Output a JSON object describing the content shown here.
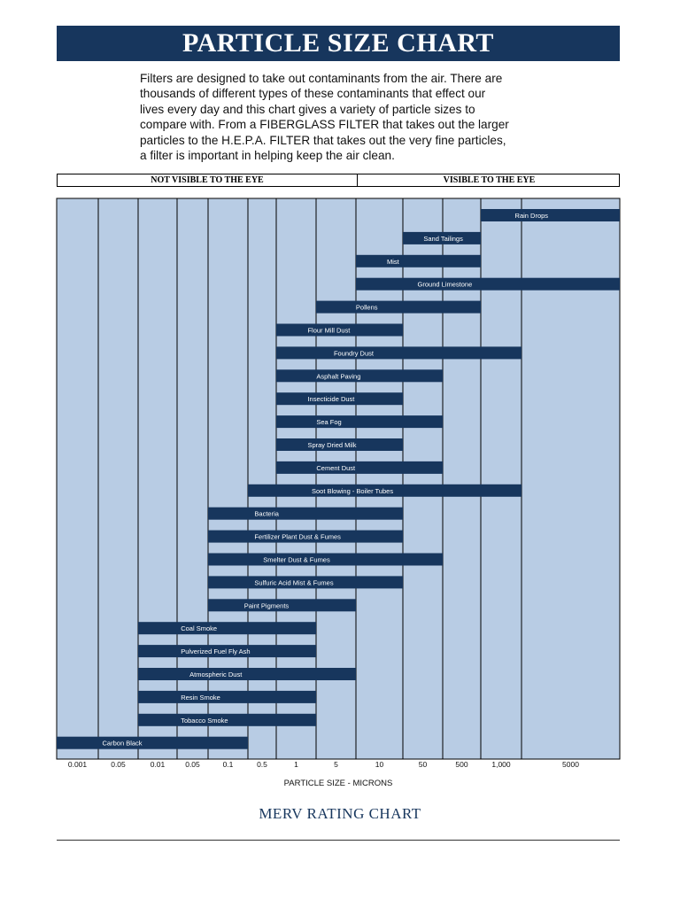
{
  "page": {
    "title": "PARTICLE SIZE CHART",
    "intro": "Filters are designed to take out contaminants from the air. There are thousands of different types of these contaminants that effect our lives every day and this chart gives a variety of particle sizes to compare with. From a FIBERGLASS FILTER that takes out the larger particles to the H.E.P.A. FILTER that takes out the very fine particles, a filter is important in helping keep the air clean.",
    "not_visible_label": "NOT VISIBLE TO THE EYE",
    "visible_label": "VISIBLE TO THE EYE",
    "merv_title": "MERV RATING CHART"
  },
  "colors": {
    "header": "#17365d",
    "column": "#b8cce4",
    "bar": "#17365d",
    "bar_text": "#ffffff"
  },
  "chart_data": {
    "type": "range-bar",
    "title": "PARTICLE SIZE CHART",
    "xlabel": "PARTICLE SIZE - MICRONS",
    "x_ticks": [
      "0.001",
      "0.05",
      "0.01",
      "0.05",
      "0.1",
      "0.5",
      "1",
      "5",
      "10",
      "50",
      "500",
      "1,000",
      "5000"
    ],
    "series": [
      {
        "name": "Rain Drops",
        "from": 11,
        "to": 13
      },
      {
        "name": "Sand Tailings",
        "from": 9,
        "to": 11
      },
      {
        "name": "Mist",
        "from": 8,
        "to": 11
      },
      {
        "name": "Ground Limestone",
        "from": 8,
        "to": 13
      },
      {
        "name": "Pollens",
        "from": 7,
        "to": 11
      },
      {
        "name": "Flour Mill Dust",
        "from": 6,
        "to": 9
      },
      {
        "name": "Foundry Dust",
        "from": 6,
        "to": 12
      },
      {
        "name": "Asphalt Paving",
        "from": 6,
        "to": 10
      },
      {
        "name": "Insecticide Dust",
        "from": 6,
        "to": 9
      },
      {
        "name": "Sea Fog",
        "from": 6,
        "to": 10
      },
      {
        "name": "Spray Dried Milk",
        "from": 6,
        "to": 9
      },
      {
        "name": "Cement Dust",
        "from": 6,
        "to": 10
      },
      {
        "name": "Soot Blowing - Boiler Tubes",
        "from": 5,
        "to": 12
      },
      {
        "name": "Bacteria",
        "from": 4,
        "to": 9
      },
      {
        "name": "Fertilizer Plant Dust & Fumes",
        "from": 4,
        "to": 9
      },
      {
        "name": "Smelter Dust & Fumes",
        "from": 4,
        "to": 10
      },
      {
        "name": "Sulfuric Acid Mist & Fumes",
        "from": 4,
        "to": 9
      },
      {
        "name": "Paint Pigments",
        "from": 4,
        "to": 8
      },
      {
        "name": "Coal Smoke",
        "from": 2,
        "to": 7
      },
      {
        "name": "Pulverized Fuel Fly Ash",
        "from": 2,
        "to": 7
      },
      {
        "name": "Atmospheric Dust",
        "from": 2,
        "to": 8
      },
      {
        "name": "Resin Smoke",
        "from": 2,
        "to": 7
      },
      {
        "name": "Tobacco Smoke",
        "from": 2,
        "to": 7
      },
      {
        "name": "Carbon Black",
        "from": 0,
        "to": 5
      }
    ]
  }
}
